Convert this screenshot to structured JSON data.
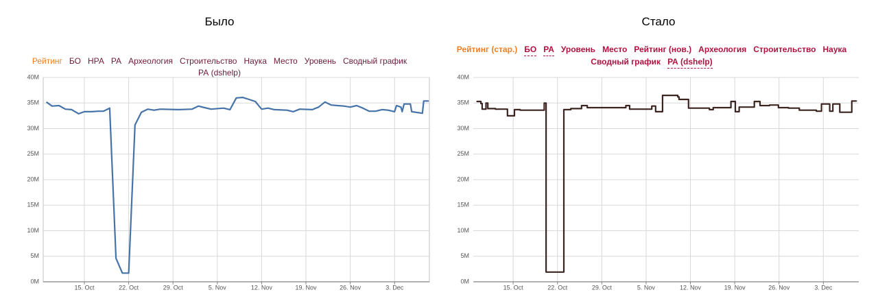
{
  "menus": [
    {
      "items": [
        "Рейтинг",
        "БО",
        "НРА",
        "РА",
        "Археология",
        "Строительство",
        "Наука",
        "Место",
        "Уровень",
        "Сводный график",
        "РА (dshelp)"
      ],
      "active": 0,
      "dashed": [
        10
      ],
      "bold": false
    },
    {
      "items": [
        "Рейтинг (стар.)",
        "БО",
        "РА",
        "Уровень",
        "Место",
        "Рейтинг (нов.)",
        "Археология",
        "Строительство",
        "Наука",
        "Сводный график",
        "РА (dshelp)"
      ],
      "active": 0,
      "dashed": [
        1,
        2,
        10
      ],
      "bold": true
    }
  ],
  "chart_data": [
    {
      "type": "line",
      "title": "Было",
      "xlim": [
        8.5,
        69.5
      ],
      "xticks": [
        {
          "value": 15,
          "label": "15. Oct"
        },
        {
          "value": 22,
          "label": "22. Oct"
        },
        {
          "value": 29,
          "label": "29. Oct"
        },
        {
          "value": 36,
          "label": "5. Nov"
        },
        {
          "value": 43,
          "label": "12. Nov"
        },
        {
          "value": 50,
          "label": "19. Nov"
        },
        {
          "value": 57,
          "label": "26. Nov"
        },
        {
          "value": 64,
          "label": "3. Dec"
        }
      ],
      "ylim": [
        0,
        40000000
      ],
      "yticks": [
        {
          "value": 0,
          "label": "0M"
        },
        {
          "value": 5000000,
          "label": "5M"
        },
        {
          "value": 10000000,
          "label": "10M"
        },
        {
          "value": 15000000,
          "label": "15M"
        },
        {
          "value": 20000000,
          "label": "20M"
        },
        {
          "value": 25000000,
          "label": "25M"
        },
        {
          "value": 30000000,
          "label": "30M"
        },
        {
          "value": 35000000,
          "label": "35M"
        },
        {
          "value": 40000000,
          "label": "40M"
        }
      ],
      "grid": true,
      "series": [
        {
          "color": "#4572a7",
          "x": [
            9.0,
            9.9,
            11.0,
            12.0,
            13.0,
            14.1,
            15.0,
            16.1,
            17.2,
            18.0,
            19.0,
            20.0,
            21.0,
            22.0,
            23.0,
            24.0,
            25.0,
            26.0,
            27.0,
            30.0,
            32.0,
            33.0,
            34.0,
            35.0,
            37.0,
            38.0,
            39.0,
            40.0,
            41.0,
            42.0,
            43.0,
            44.0,
            45.0,
            47.0,
            48.0,
            49.0,
            51.0,
            52.0,
            53.0,
            54.0,
            55.0,
            56.0,
            57.0,
            58.0,
            59.0,
            60.0,
            61.0,
            62.0,
            63.0,
            64.0,
            64.3,
            65.0,
            65.2,
            65.5,
            66.5,
            66.7,
            68.4,
            68.6,
            69.4
          ],
          "values": [
            35200000,
            34400000,
            34500000,
            33800000,
            33700000,
            32900000,
            33300000,
            33300000,
            33400000,
            33400000,
            34000000,
            4600000,
            1700000,
            1700000,
            30700000,
            33200000,
            33800000,
            33600000,
            33800000,
            33700000,
            33800000,
            34400000,
            34100000,
            33800000,
            34000000,
            33700000,
            36000000,
            36100000,
            35700000,
            35300000,
            33800000,
            34000000,
            33700000,
            33600000,
            33300000,
            33800000,
            33700000,
            34200000,
            35200000,
            34600000,
            34500000,
            34400000,
            34200000,
            34500000,
            34000000,
            33400000,
            33400000,
            33700000,
            33600000,
            33300000,
            34500000,
            34200000,
            33300000,
            34800000,
            34800000,
            33300000,
            33000000,
            35400000,
            35400000
          ]
        }
      ]
    },
    {
      "type": "line",
      "title": "Стало",
      "xlim": [
        8.7,
        69.6
      ],
      "xticks": [
        {
          "value": 15,
          "label": "15. Oct"
        },
        {
          "value": 22,
          "label": "22. Oct"
        },
        {
          "value": 29,
          "label": "29. Oct"
        },
        {
          "value": 36,
          "label": "5. Nov"
        },
        {
          "value": 43,
          "label": "12. Nov"
        },
        {
          "value": 50,
          "label": "19. Nov"
        },
        {
          "value": 57,
          "label": "26. Nov"
        },
        {
          "value": 64,
          "label": "3. Dec"
        }
      ],
      "ylim": [
        0,
        40000000
      ],
      "yticks": [
        {
          "value": 0,
          "label": "0M"
        },
        {
          "value": 5000000,
          "label": "5M"
        },
        {
          "value": 10000000,
          "label": "10M"
        },
        {
          "value": 15000000,
          "label": "15M"
        },
        {
          "value": 20000000,
          "label": "20M"
        },
        {
          "value": 25000000,
          "label": "25M"
        },
        {
          "value": 30000000,
          "label": "30M"
        },
        {
          "value": 35000000,
          "label": "35M"
        },
        {
          "value": 40000000,
          "label": "40M"
        }
      ],
      "grid": true,
      "series": [
        {
          "color": "#3b2420",
          "x": [
            9.2,
            9.9,
            9.9,
            10.1,
            10.1,
            10.7,
            10.7,
            11.0,
            11.0,
            12.2,
            12.2,
            14.1,
            14.1,
            15.2,
            15.2,
            16.1,
            16.1,
            19.9,
            19.9,
            20.2,
            20.2,
            23.0,
            23.0,
            24.1,
            24.1,
            25.8,
            25.8,
            26.7,
            26.7,
            32.8,
            32.8,
            33.4,
            33.4,
            36.9,
            36.9,
            37.5,
            37.5,
            38.6,
            38.6,
            41.0,
            41.0,
            41.2,
            41.2,
            42.7,
            42.7,
            46.0,
            46.0,
            46.6,
            46.6,
            49.4,
            49.4,
            50.1,
            50.1,
            50.7,
            50.7,
            53.1,
            53.1,
            54.0,
            54.0,
            55.5,
            55.5,
            56.9,
            56.9,
            58.5,
            58.5,
            60.2,
            60.2,
            62.9,
            62.9,
            63.7,
            63.7,
            65.0,
            65.0,
            65.5,
            65.5,
            66.6,
            66.6,
            68.5,
            68.5,
            69.2,
            69.2
          ],
          "values": [
            35300000,
            35300000,
            34900000,
            34900000,
            33800000,
            33800000,
            35000000,
            35000000,
            33900000,
            33900000,
            33800000,
            33800000,
            32500000,
            32500000,
            33700000,
            33700000,
            33600000,
            33600000,
            35000000,
            35000000,
            1900000,
            1900000,
            33700000,
            33700000,
            33900000,
            33900000,
            34500000,
            34500000,
            34100000,
            34100000,
            34500000,
            34500000,
            33800000,
            33800000,
            34400000,
            34400000,
            33300000,
            33300000,
            36500000,
            36500000,
            36200000,
            36200000,
            35700000,
            35700000,
            34000000,
            34000000,
            33700000,
            33700000,
            34100000,
            34100000,
            35300000,
            35300000,
            33300000,
            33300000,
            34200000,
            34200000,
            35300000,
            35300000,
            34500000,
            34500000,
            34600000,
            34600000,
            34100000,
            34100000,
            34000000,
            34000000,
            33600000,
            33600000,
            33400000,
            33400000,
            34800000,
            34800000,
            33400000,
            33400000,
            34800000,
            34800000,
            33200000,
            33200000,
            35400000,
            35400000,
            35500000
          ]
        }
      ]
    }
  ]
}
